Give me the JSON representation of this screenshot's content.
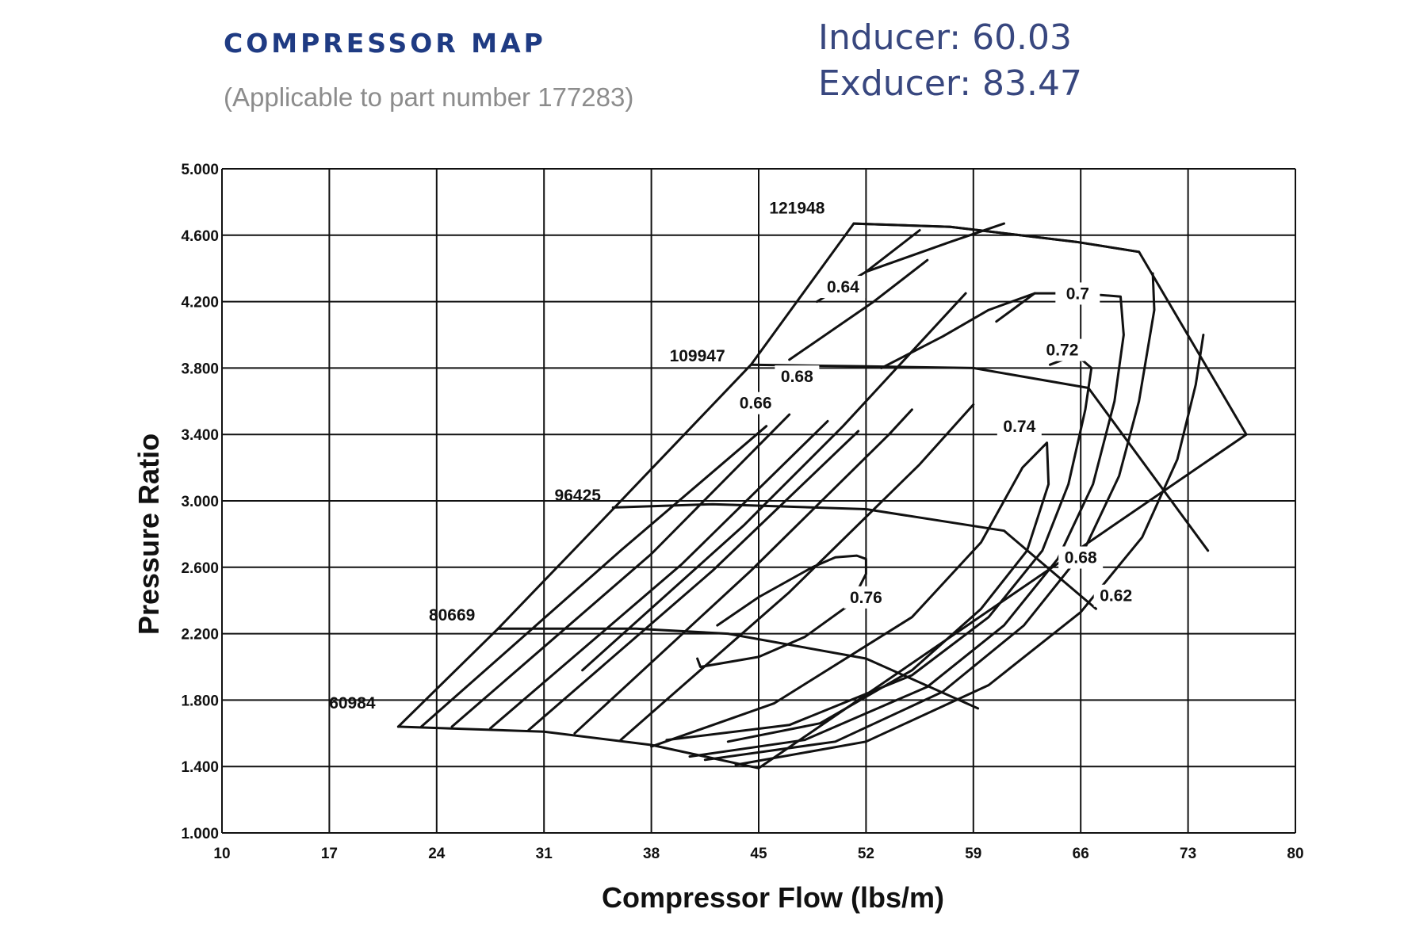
{
  "header": {
    "title": "COMPRESSOR MAP",
    "subtitle": "(Applicable to part number 177283)",
    "inducer": "Inducer: 60.03",
    "exducer": "Exducer: 83.47"
  },
  "colors": {
    "title": "#1f3b83",
    "subtitle": "#8c8c8c",
    "spec": "#38477f",
    "lines": "#111111"
  },
  "chart_data": {
    "type": "line",
    "title": "COMPRESSOR MAP",
    "subtitle": "(Applicable to part number 177283)",
    "xlabel": "Compressor Flow (lbs/m)",
    "ylabel": "Pressure Ratio",
    "xlim": [
      10,
      80
    ],
    "ylim": [
      1.0,
      5.0
    ],
    "x_ticks": [
      "10",
      "17",
      "24",
      "31",
      "38",
      "45",
      "52",
      "59",
      "66",
      "73",
      "80"
    ],
    "y_ticks": [
      "1.000",
      "1.400",
      "1.800",
      "2.200",
      "2.600",
      "3.000",
      "3.400",
      "3.800",
      "4.200",
      "4.600",
      "5.000"
    ],
    "grid": true,
    "surge_line": [
      [
        21.5,
        1.64
      ],
      [
        28,
        2.23
      ],
      [
        35.5,
        2.95
      ],
      [
        44.5,
        3.82
      ],
      [
        51.2,
        4.67
      ]
    ],
    "choke_line": [
      [
        51.2,
        4.67
      ],
      [
        57.5,
        4.65
      ],
      [
        65.7,
        4.56
      ],
      [
        69.8,
        4.5
      ],
      [
        76.8,
        3.4
      ],
      [
        45,
        1.39
      ]
    ],
    "speed_lines": [
      {
        "label": "60984",
        "label_at": [
          18.5,
          1.75
        ],
        "points": [
          [
            21.5,
            1.64
          ],
          [
            31,
            1.61
          ],
          [
            38,
            1.53
          ],
          [
            45,
            1.39
          ]
        ]
      },
      {
        "label": "80669",
        "label_at": [
          25,
          2.28
        ],
        "points": [
          [
            28,
            2.23
          ],
          [
            37,
            2.23
          ],
          [
            43,
            2.2
          ],
          [
            52,
            2.05
          ],
          [
            59.3,
            1.75
          ]
        ]
      },
      {
        "label": "96425",
        "label_at": [
          33.2,
          3.0
        ],
        "points": [
          [
            35.5,
            2.96
          ],
          [
            42,
            2.98
          ],
          [
            52,
            2.95
          ],
          [
            61,
            2.82
          ],
          [
            67,
            2.35
          ]
        ]
      },
      {
        "label": "109947",
        "label_at": [
          41,
          3.84
        ],
        "points": [
          [
            44.5,
            3.82
          ],
          [
            52,
            3.81
          ],
          [
            59,
            3.8
          ],
          [
            66.5,
            3.68
          ],
          [
            74.3,
            2.7
          ]
        ]
      },
      {
        "label": "121948",
        "label_at": [
          47.5,
          4.73
        ],
        "points": [
          [
            51.2,
            4.67
          ],
          [
            57.5,
            4.65
          ],
          [
            65.7,
            4.56
          ],
          [
            69.8,
            4.5
          ]
        ]
      }
    ],
    "efficiency_islands": [
      {
        "label": "0.76",
        "label_at": [
          52,
          2.39
        ],
        "points": [
          [
            41,
            2.05
          ],
          [
            41.2,
            2.0
          ],
          [
            45,
            2.06
          ],
          [
            48,
            2.18
          ],
          [
            51,
            2.38
          ],
          [
            52,
            2.56
          ],
          [
            52,
            2.65
          ],
          [
            51.4,
            2.67
          ],
          [
            50,
            2.66
          ],
          [
            48.5,
            2.6
          ],
          [
            45,
            2.42
          ],
          [
            42.3,
            2.25
          ]
        ]
      },
      {
        "label": "0.74",
        "label_at": [
          62,
          3.42
        ],
        "points": [
          [
            38,
            1.52
          ],
          [
            46,
            1.78
          ],
          [
            55,
            2.3
          ],
          [
            59.5,
            2.75
          ],
          [
            62.2,
            3.2
          ],
          [
            63.8,
            3.35
          ],
          [
            63.9,
            3.1
          ],
          [
            62.5,
            2.7
          ],
          [
            59.5,
            2.35
          ],
          [
            55,
            1.98
          ],
          [
            49,
            1.66
          ],
          [
            43,
            1.55
          ]
        ]
      },
      {
        "label": "0.72",
        "label_at": [
          64.8,
          3.88
        ],
        "points": [
          [
            39,
            1.56
          ],
          [
            47,
            1.65
          ],
          [
            55,
            1.95
          ],
          [
            60,
            2.3
          ],
          [
            63.5,
            2.7
          ],
          [
            65.2,
            3.1
          ],
          [
            66.3,
            3.55
          ],
          [
            66.7,
            3.8
          ],
          [
            65.7,
            3.88
          ],
          [
            64,
            3.82
          ]
        ]
      },
      {
        "label": "0.7",
        "label_at": [
          65.8,
          4.22
        ],
        "points": [
          [
            40.5,
            1.46
          ],
          [
            48,
            1.56
          ],
          [
            56,
            1.88
          ],
          [
            61,
            2.25
          ],
          [
            64.5,
            2.65
          ],
          [
            66.8,
            3.1
          ],
          [
            68.2,
            3.6
          ],
          [
            68.8,
            4.0
          ],
          [
            68.6,
            4.23
          ],
          [
            67.3,
            4.24
          ]
        ]
      },
      {
        "label": "0.68",
        "label_at": [
          66,
          2.63
        ],
        "points": [
          [
            41.5,
            1.44
          ],
          [
            50,
            1.55
          ],
          [
            57,
            1.85
          ],
          [
            62.3,
            2.25
          ],
          [
            66.2,
            2.7
          ],
          [
            68.5,
            3.15
          ],
          [
            69.8,
            3.6
          ],
          [
            70.8,
            4.15
          ],
          [
            70.7,
            4.37
          ]
        ]
      },
      {
        "label": "0.62",
        "label_at": [
          68.3,
          2.4
        ],
        "points": [
          [
            43.5,
            1.41
          ],
          [
            52,
            1.55
          ],
          [
            60,
            1.89
          ],
          [
            66,
            2.33
          ],
          [
            70,
            2.78
          ],
          [
            72.3,
            3.25
          ],
          [
            73.5,
            3.7
          ],
          [
            74,
            4.0
          ]
        ]
      }
    ],
    "efficiency_labels": [
      {
        "label": "0.64",
        "at": [
          50.5,
          4.26
        ]
      },
      {
        "label": "0.66",
        "at": [
          44.8,
          3.56
        ]
      },
      {
        "label": "0.68",
        "at": [
          47.5,
          3.72
        ]
      }
    ]
  }
}
